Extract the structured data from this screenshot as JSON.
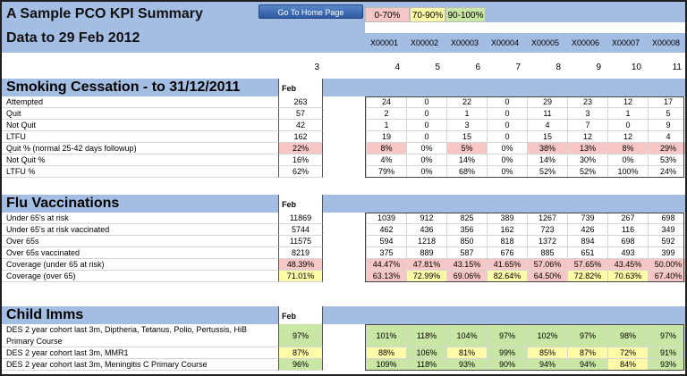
{
  "header": {
    "title_line1": "A Sample PCO KPI Summary",
    "title_line2": "Data to 29 Feb 2012",
    "home_button": "Go To Home Page",
    "legend": {
      "red": "0-70%",
      "yellow": "70-90%",
      "green": "90-100%"
    },
    "colors": {
      "band": "#a4bde3",
      "red": "#f7c6c6",
      "yellow": "#fdfaa8",
      "green": "#c9e6a4"
    }
  },
  "practices": [
    "X00001",
    "X00002",
    "X00003",
    "X00004",
    "X00005",
    "X00006",
    "X00007",
    "X00008"
  ],
  "column_numbers": [
    "3",
    "4",
    "5",
    "6",
    "7",
    "8",
    "9",
    "10",
    "11"
  ],
  "sections": [
    {
      "title": "Smoking Cessation - to 31/12/2011",
      "feb_label": "Feb",
      "rows": [
        {
          "label": "Attempted",
          "total": "263",
          "values": [
            "24",
            "0",
            "22",
            "0",
            "29",
            "23",
            "12",
            "17"
          ]
        },
        {
          "label": "Quit",
          "total": "57",
          "values": [
            "2",
            "0",
            "1",
            "0",
            "11",
            "3",
            "1",
            "5"
          ]
        },
        {
          "label": "Not Quit",
          "total": "42",
          "values": [
            "1",
            "0",
            "3",
            "0",
            "4",
            "7",
            "0",
            "9"
          ]
        },
        {
          "label": "LTFU",
          "total": "162",
          "values": [
            "19",
            "0",
            "15",
            "0",
            "15",
            "12",
            "12",
            "4"
          ]
        },
        {
          "label": "Quit % (normal 25-42 days followup)",
          "total": "22%",
          "total_color": "red",
          "values": [
            "8%",
            "0%",
            "5%",
            "0%",
            "38%",
            "13%",
            "8%",
            "29%"
          ],
          "colors": [
            "red",
            "",
            "red",
            "",
            "red",
            "red",
            "red",
            "red"
          ]
        },
        {
          "label": "Not Quit %",
          "total": "16%",
          "values": [
            "4%",
            "0%",
            "14%",
            "0%",
            "14%",
            "30%",
            "0%",
            "53%"
          ]
        },
        {
          "label": "LTFU %",
          "total": "62%",
          "values": [
            "79%",
            "0%",
            "68%",
            "0%",
            "52%",
            "52%",
            "100%",
            "24%"
          ]
        }
      ]
    },
    {
      "title": "Flu Vaccinations",
      "feb_label": "Feb",
      "rows": [
        {
          "label": "Under 65's at risk",
          "total": "11869",
          "values": [
            "1039",
            "912",
            "825",
            "389",
            "1267",
            "739",
            "267",
            "698"
          ]
        },
        {
          "label": "Under 65's at risk vaccinated",
          "total": "5744",
          "values": [
            "462",
            "436",
            "356",
            "162",
            "723",
            "426",
            "116",
            "349"
          ]
        },
        {
          "label": "Over 65s",
          "total": "11575",
          "values": [
            "594",
            "1218",
            "850",
            "818",
            "1372",
            "894",
            "698",
            "592"
          ]
        },
        {
          "label": "Over 65s vaccinated",
          "total": "8219",
          "values": [
            "375",
            "889",
            "587",
            "676",
            "885",
            "651",
            "493",
            "399"
          ]
        },
        {
          "label": "Coverage (under 65 at risk)",
          "total": "48.39%",
          "total_color": "red",
          "values": [
            "44.47%",
            "47.81%",
            "43.15%",
            "41.65%",
            "57.06%",
            "57.65%",
            "43.45%",
            "50.00%"
          ],
          "colors": [
            "red",
            "red",
            "red",
            "red",
            "red",
            "red",
            "red",
            "red"
          ]
        },
        {
          "label": "Coverage (over 65)",
          "total": "71.01%",
          "total_color": "yellow",
          "values": [
            "63.13%",
            "72.99%",
            "69.06%",
            "82.64%",
            "64.50%",
            "72.82%",
            "70.63%",
            "67.40%"
          ],
          "colors": [
            "red",
            "yellow",
            "red",
            "yellow",
            "red",
            "yellow",
            "yellow",
            "red"
          ]
        }
      ]
    },
    {
      "title": "Child Imms",
      "feb_label": "Feb",
      "rows": [
        {
          "label": "DES 2 year cohort last 3m,  Diptheria, Tetanus, Polio, Pertussis, HiB",
          "label2": "Primary Course",
          "total": "97%",
          "total_color": "green",
          "values": [
            "101%",
            "118%",
            "104%",
            "97%",
            "102%",
            "97%",
            "98%",
            "97%"
          ],
          "colors": [
            "green",
            "green",
            "green",
            "green",
            "green",
            "green",
            "green",
            "green"
          ]
        },
        {
          "label": "DES 2 year cohort last 3m, MMR1",
          "total": "87%",
          "total_color": "yellow",
          "values": [
            "88%",
            "106%",
            "81%",
            "99%",
            "85%",
            "87%",
            "72%",
            "91%"
          ],
          "colors": [
            "yellow",
            "green",
            "yellow",
            "green",
            "yellow",
            "yellow",
            "yellow",
            "green"
          ]
        },
        {
          "label": "DES 2 year cohort last 3m, Meningitis C Primary Course",
          "total": "96%",
          "total_color": "green",
          "values": [
            "109%",
            "118%",
            "93%",
            "90%",
            "94%",
            "94%",
            "84%",
            "93%"
          ],
          "colors": [
            "green",
            "green",
            "green",
            "green",
            "green",
            "green",
            "yellow",
            "green"
          ]
        }
      ]
    }
  ]
}
